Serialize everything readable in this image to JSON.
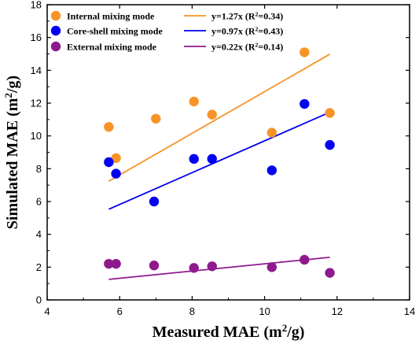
{
  "chart_data": {
    "type": "scatter",
    "xlabel": "Measured MAE (m²/g)",
    "ylabel": "Simulated MAE (m²/g)",
    "xlim": [
      4,
      14
    ],
    "ylim": [
      0,
      18
    ],
    "x_ticks": [
      4,
      6,
      8,
      10,
      12,
      14
    ],
    "y_ticks": [
      0,
      2,
      4,
      6,
      8,
      10,
      12,
      14,
      16,
      18
    ],
    "grid": false,
    "legend_placement": "top",
    "series": [
      {
        "name": "Internal mixing mode",
        "color": "#F79428",
        "points": [
          {
            "x": 5.7,
            "y": 10.55
          },
          {
            "x": 5.9,
            "y": 8.65
          },
          {
            "x": 7.0,
            "y": 11.05
          },
          {
            "x": 8.05,
            "y": 12.1
          },
          {
            "x": 8.55,
            "y": 11.3
          },
          {
            "x": 10.2,
            "y": 10.2
          },
          {
            "x": 11.1,
            "y": 15.1
          },
          {
            "x": 11.8,
            "y": 11.4
          }
        ],
        "fit": {
          "label": "y=1.27x (R²=0.34)",
          "eq": "y=1.27x",
          "r2": "0.34",
          "slope": 1.27,
          "x": [
            5.7,
            11.8
          ]
        }
      },
      {
        "name": "Core-shell mixing mode",
        "color": "#0000F2",
        "points": [
          {
            "x": 5.7,
            "y": 8.4
          },
          {
            "x": 5.9,
            "y": 7.7
          },
          {
            "x": 6.95,
            "y": 6.0
          },
          {
            "x": 8.05,
            "y": 8.6
          },
          {
            "x": 8.55,
            "y": 8.6
          },
          {
            "x": 10.2,
            "y": 7.9
          },
          {
            "x": 11.1,
            "y": 11.95
          },
          {
            "x": 11.8,
            "y": 9.45
          }
        ],
        "fit": {
          "label": "y=0.97x (R²=0.43)",
          "eq": "y=0.97x",
          "r2": "0.43",
          "slope": 0.97,
          "x": [
            5.7,
            11.8
          ]
        }
      },
      {
        "name": "External mixing mode",
        "color": "#8E1A8E",
        "points": [
          {
            "x": 5.7,
            "y": 2.2
          },
          {
            "x": 5.9,
            "y": 2.2
          },
          {
            "x": 6.95,
            "y": 2.1
          },
          {
            "x": 8.05,
            "y": 1.95
          },
          {
            "x": 8.55,
            "y": 2.05
          },
          {
            "x": 10.2,
            "y": 2.0
          },
          {
            "x": 11.1,
            "y": 2.45
          },
          {
            "x": 11.8,
            "y": 1.65
          }
        ],
        "fit": {
          "label": "y=0.22x (R²=0.14)",
          "eq": "y=0.22x",
          "r2": "0.14",
          "slope": 0.22,
          "x": [
            5.7,
            11.8
          ]
        }
      }
    ]
  }
}
